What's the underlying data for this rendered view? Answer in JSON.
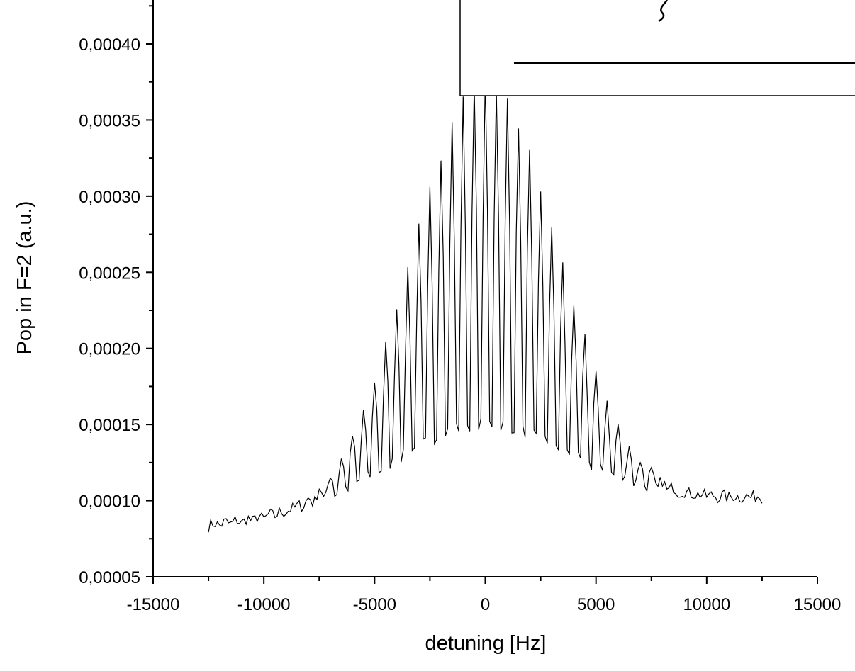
{
  "chart_data": {
    "type": "line",
    "title": "",
    "xlabel": "detuning [Hz]",
    "ylabel": "Pop in F=2 (a.u.)",
    "xlim": [
      -15000,
      15000
    ],
    "ylim": [
      5e-05,
      0.00043
    ],
    "grid": false,
    "x_ticks": [
      -15000,
      -10000,
      -5000,
      0,
      5000,
      10000,
      15000
    ],
    "x_tick_labels": [
      "-15000",
      "-10000",
      "-5000",
      "0",
      "5000",
      "10000",
      "15000"
    ],
    "y_ticks": [
      5e-05,
      0.0001,
      0.00015,
      0.0002,
      0.00025,
      0.0003,
      0.00035,
      0.0004
    ],
    "y_tick_labels": [
      "0,00005",
      "0,00010",
      "0,00015",
      "0,00020",
      "0,00025",
      "0,00030",
      "0,00035",
      "0,00040"
    ],
    "series": [
      {
        "x_start": -12500,
        "x_step": 100,
        "points_per_fringe": 5,
        "envelope": {
          "baseline_left": 8.3e-05,
          "baseline_right": 0.000102,
          "upper_peak": 0.000375,
          "upper_sigma": 3300,
          "lower_peak": 0.000133,
          "lower_sigma": 5000,
          "fringe_period": 500
        },
        "x_end": 12500
      }
    ],
    "line_color": "#000000"
  },
  "colors": {
    "line": "#000000",
    "axes": "#000000",
    "background": "#ffffff"
  }
}
